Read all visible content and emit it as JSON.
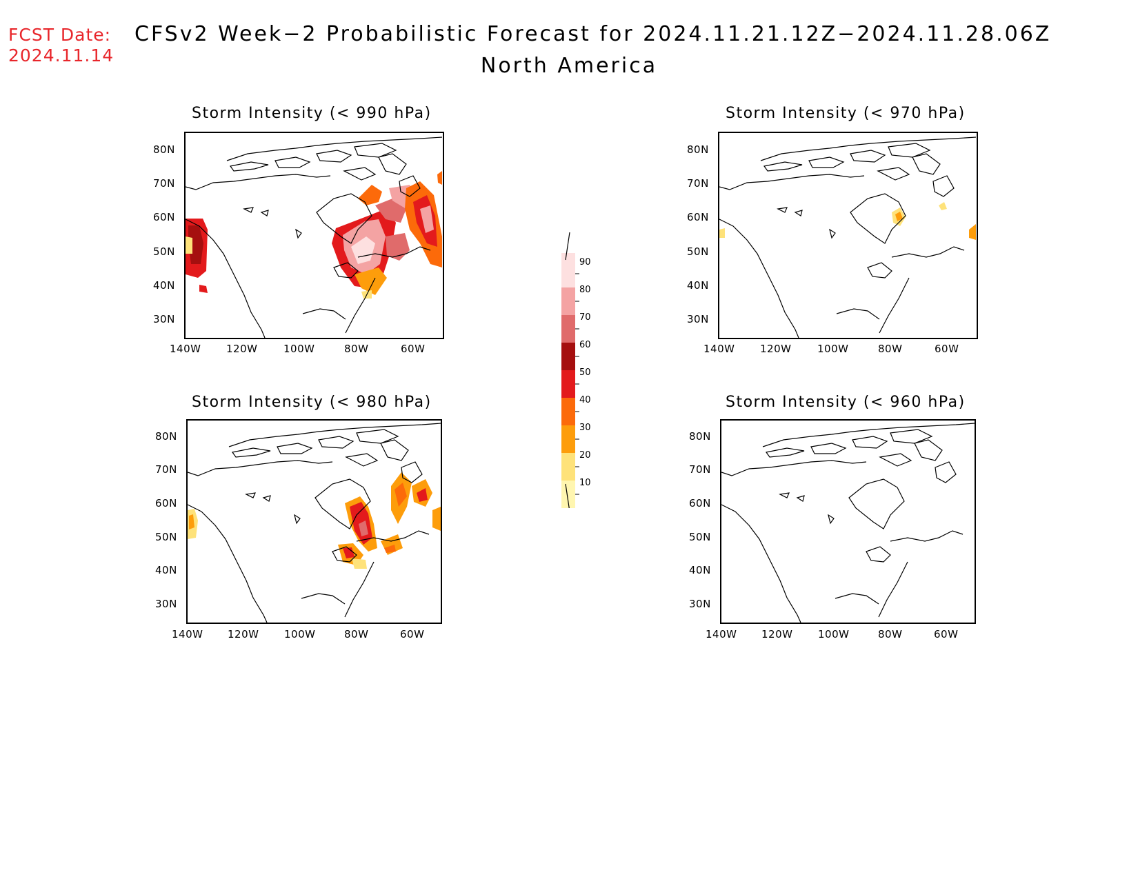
{
  "header": {
    "fcst_label": "FCST Date:",
    "fcst_date": "2024.11.14",
    "title": "CFSv2 Week−2 Probabilistic Forecast for 2024.11.21.12Z−2024.11.28.06Z",
    "subtitle": "North America"
  },
  "axes": {
    "lat_labels": [
      "80N",
      "70N",
      "60N",
      "50N",
      "40N",
      "30N"
    ],
    "lon_labels": [
      "140W",
      "120W",
      "100W",
      "80W",
      "60W"
    ]
  },
  "panels": [
    {
      "title": "Storm Intensity (< 990 hPa)"
    },
    {
      "title": "Storm Intensity (< 970 hPa)"
    },
    {
      "title": "Storm Intensity (< 980 hPa)"
    },
    {
      "title": "Storm Intensity (< 960 hPa)"
    }
  ],
  "colorbar": {
    "levels": [
      "90",
      "80",
      "70",
      "60",
      "50",
      "40",
      "30",
      "20",
      "10"
    ],
    "colors": [
      "#fde0e0",
      "#f4a3a3",
      "#e06b6b",
      "#a50f0f",
      "#e31a1c",
      "#fc6a0a",
      "#fd9d0b",
      "#fee27a",
      "#fff6b0"
    ]
  },
  "map_data": {
    "type": "probability-map",
    "region": "North America",
    "lon_range": [
      "140W",
      "50W"
    ],
    "lat_range": [
      "25N",
      "85N"
    ],
    "units": "percent probability"
  }
}
